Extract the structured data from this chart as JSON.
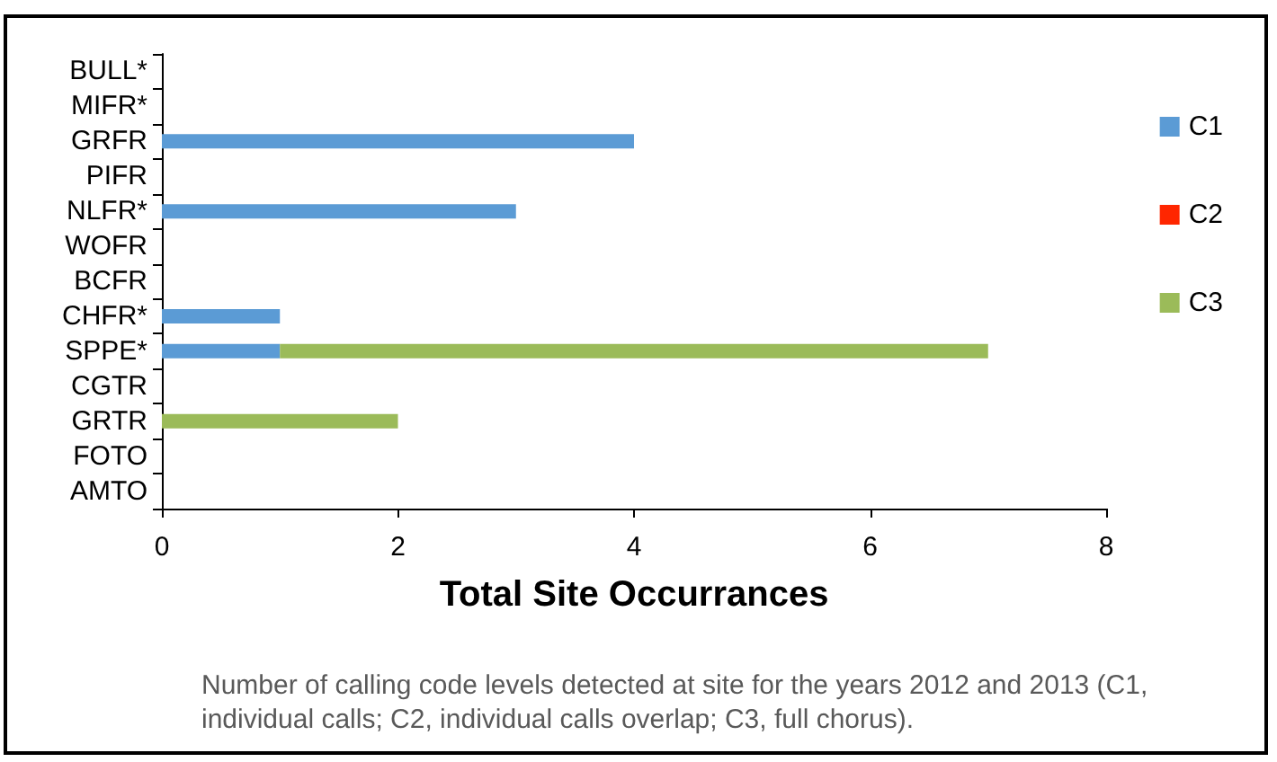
{
  "chart_data": {
    "type": "bar",
    "orientation": "horizontal",
    "stacked": true,
    "categories": [
      "BULL*",
      "MIFR*",
      "GRFR",
      "PIFR",
      "NLFR*",
      "WOFR",
      "BCFR",
      "CHFR*",
      "SPPE*",
      "CGTR",
      "GRTR",
      "FOTO",
      "AMTO"
    ],
    "series": [
      {
        "name": "C1",
        "color": "#5b9bd5",
        "values": [
          0,
          0,
          4,
          0,
          3,
          0,
          0,
          1,
          1,
          0,
          0,
          0,
          0
        ]
      },
      {
        "name": "C2",
        "color": "#ff2600",
        "values": [
          0,
          0,
          0,
          0,
          0,
          0,
          0,
          0,
          0,
          0,
          0,
          0,
          0
        ]
      },
      {
        "name": "C3",
        "color": "#9bbb59",
        "values": [
          0,
          0,
          0,
          0,
          0,
          0,
          0,
          0,
          6,
          0,
          2,
          0,
          0
        ]
      }
    ],
    "xlim": [
      0,
      8
    ],
    "xticks": [
      0,
      2,
      4,
      6,
      8
    ],
    "xlabel": "Total Site Occurrances",
    "legend": "right",
    "grid": false,
    "annotations": [
      "Number of calling code levels detected at site for the years 2012 and 2013 (C1, individual calls; C2, individual calls overlap; C3, full chorus)."
    ]
  }
}
